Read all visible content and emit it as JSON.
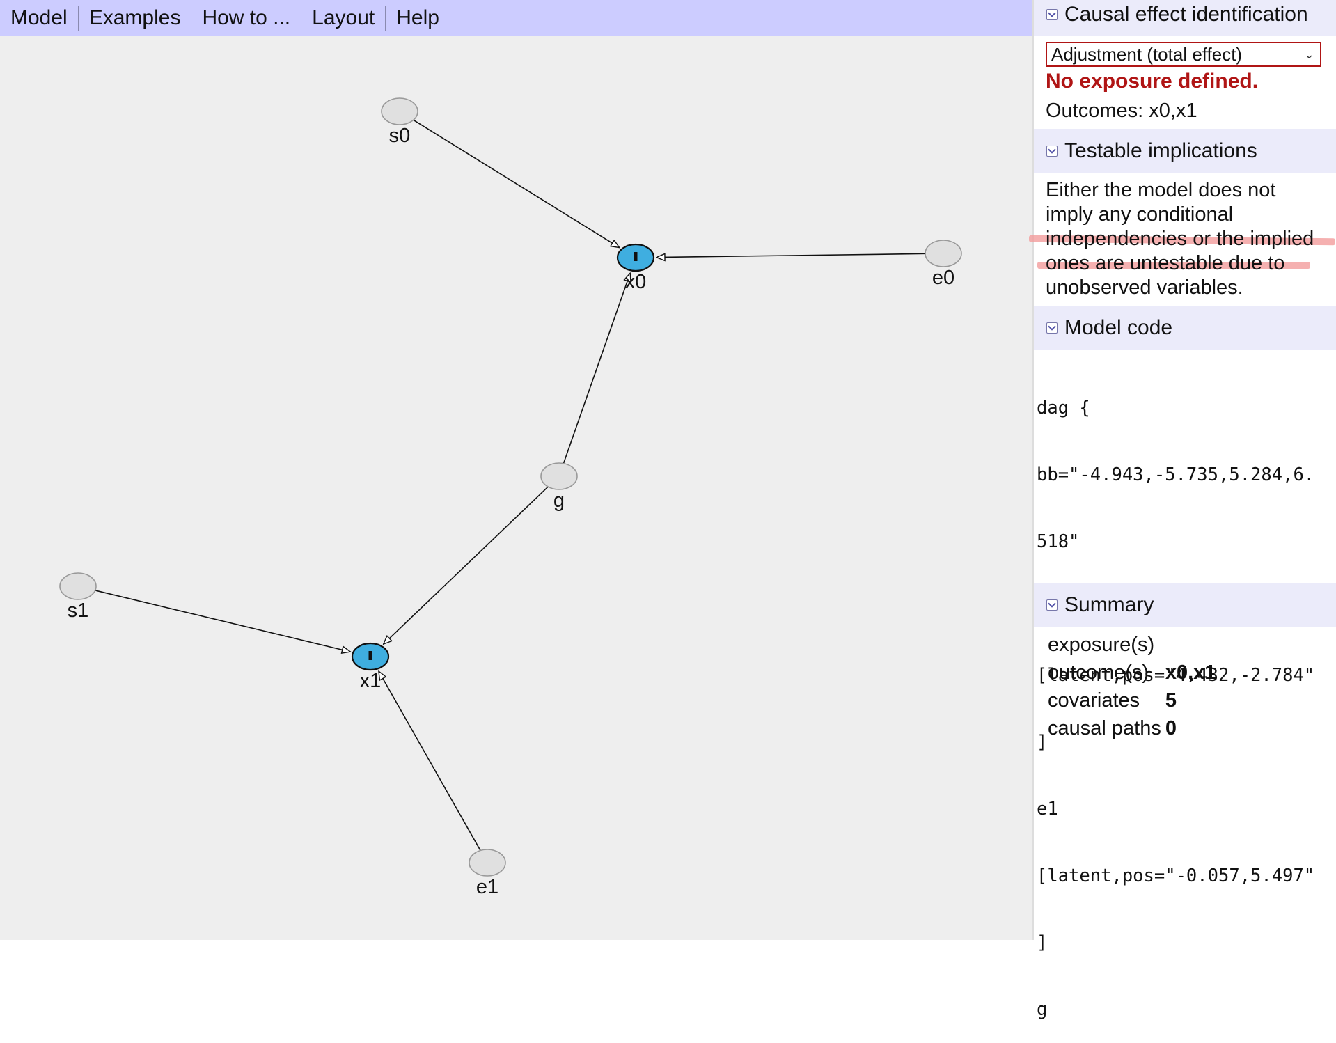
{
  "menu": {
    "items": [
      "Model",
      "Examples",
      "How to ...",
      "Layout",
      "Help"
    ]
  },
  "graph": {
    "nodes": [
      {
        "id": "s0",
        "label": "s0",
        "type": "latent"
      },
      {
        "id": "x0",
        "label": "x0",
        "type": "outcome"
      },
      {
        "id": "e0",
        "label": "e0",
        "type": "latent"
      },
      {
        "id": "g",
        "label": "g",
        "type": "latent"
      },
      {
        "id": "s1",
        "label": "s1",
        "type": "latent"
      },
      {
        "id": "x1",
        "label": "x1",
        "type": "outcome"
      },
      {
        "id": "e1",
        "label": "e1",
        "type": "latent"
      }
    ],
    "edges": [
      {
        "from": "s0",
        "to": "x0"
      },
      {
        "from": "e0",
        "to": "x0"
      },
      {
        "from": "g",
        "to": "x0"
      },
      {
        "from": "g",
        "to": "x1"
      },
      {
        "from": "s1",
        "to": "x1"
      },
      {
        "from": "e1",
        "to": "x1"
      }
    ],
    "colors": {
      "canvas": "#eeeeee",
      "latent_fill": "#e0e0e0",
      "latent_stroke": "#999999",
      "outcome_fill": "#3faee0",
      "outcome_stroke": "#111111",
      "edge": "#111111"
    }
  },
  "sidebar": {
    "causal": {
      "title": "Causal effect identification",
      "select_value": "Adjustment (total effect)",
      "warning": "No exposure defined.",
      "outcomes_text": "Outcomes: x0,x1"
    },
    "testable": {
      "title": "Testable implications",
      "lines": [
        "Either the model does not",
        "imply any conditional",
        "independencies or the implied",
        "ones are untestable due to",
        "unobserved variables."
      ]
    },
    "model_code": {
      "title": "Model code",
      "lines": [
        "dag {",
        "bb=\"-4.943,-5.735,5.284,6.",
        "518\"",
        "e0",
        "[latent,pos=\"4.432,-2.784\"",
        "]",
        "e1",
        "[latent,pos=\"-0.057,5.497\"",
        "]",
        "g"
      ]
    },
    "summary": {
      "title": "Summary",
      "rows": [
        {
          "key": "exposure(s)",
          "value": ""
        },
        {
          "key": "outcome(s)",
          "value": "x0,x1"
        },
        {
          "key": "covariates",
          "value": "5"
        },
        {
          "key": "causal paths",
          "value": "0"
        }
      ]
    }
  }
}
